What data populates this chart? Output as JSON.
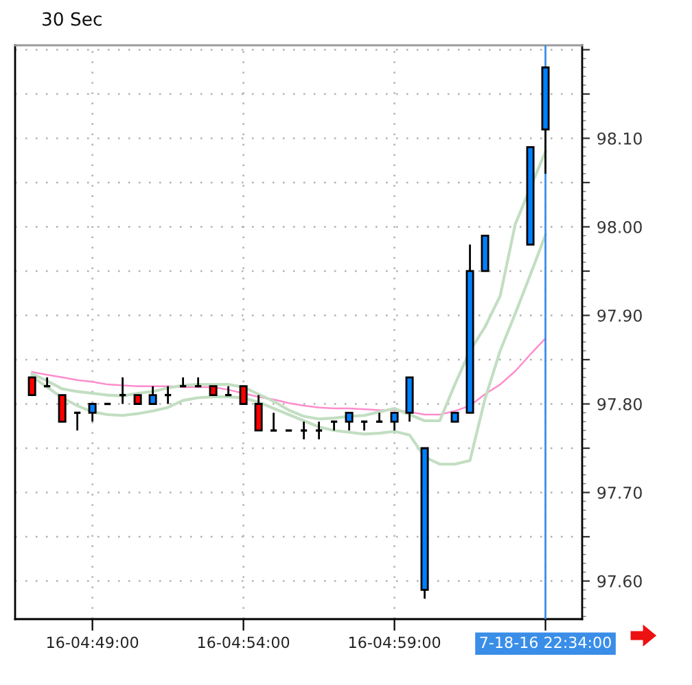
{
  "chart_data": {
    "type": "candlestick",
    "title": "30 Sec",
    "categories": [
      null,
      null,
      null,
      null,
      "16-04:49:00",
      null,
      null,
      null,
      null,
      null,
      null,
      null,
      null,
      null,
      "16-04:54:00",
      null,
      null,
      null,
      null,
      null,
      null,
      null,
      null,
      null,
      "16-04:59:00",
      null,
      null,
      null,
      null,
      null,
      null,
      null,
      null,
      null,
      "7-18-16 22:34:00"
    ],
    "ohlc": [
      [
        97.83,
        97.83,
        97.81,
        97.81
      ],
      [
        97.82,
        97.83,
        97.82,
        97.82
      ],
      [
        97.81,
        97.81,
        97.78,
        97.78
      ],
      [
        97.79,
        97.79,
        97.77,
        97.79
      ],
      [
        97.79,
        97.8,
        97.78,
        97.8
      ],
      [
        97.8,
        97.8,
        97.8,
        97.8
      ],
      [
        97.81,
        97.83,
        97.8,
        97.81
      ],
      [
        97.81,
        97.81,
        97.8,
        97.8
      ],
      [
        97.8,
        97.82,
        97.8,
        97.81
      ],
      [
        97.81,
        97.82,
        97.8,
        97.81
      ],
      [
        97.82,
        97.83,
        97.82,
        97.82
      ],
      [
        97.82,
        97.83,
        97.82,
        97.82
      ],
      [
        97.82,
        97.82,
        97.81,
        97.81
      ],
      [
        97.81,
        97.82,
        97.81,
        97.81
      ],
      [
        97.82,
        97.82,
        97.8,
        97.8
      ],
      [
        97.8,
        97.81,
        97.77,
        97.77
      ],
      [
        97.77,
        97.79,
        97.77,
        97.77
      ],
      [
        97.77,
        97.77,
        97.77,
        97.77
      ],
      [
        97.77,
        97.78,
        97.76,
        97.77
      ],
      [
        97.77,
        97.78,
        97.76,
        97.77
      ],
      [
        97.78,
        97.78,
        97.77,
        97.78
      ],
      [
        97.78,
        97.79,
        97.77,
        97.79
      ],
      [
        97.78,
        97.78,
        97.77,
        97.78
      ],
      [
        97.78,
        97.79,
        97.78,
        97.78
      ],
      [
        97.78,
        97.79,
        97.77,
        97.79
      ],
      [
        97.79,
        97.83,
        97.78,
        97.83
      ],
      [
        97.59,
        97.75,
        97.58,
        97.75
      ],
      null,
      [
        97.78,
        97.79,
        97.78,
        97.79
      ],
      [
        97.79,
        97.98,
        97.79,
        97.95
      ],
      [
        97.95,
        97.99,
        97.95,
        97.99
      ],
      null,
      null,
      [
        97.98,
        98.09,
        97.98,
        98.09
      ],
      [
        98.11,
        98.18,
        98.06,
        98.18
      ]
    ],
    "colors": [
      "#ff0000",
      "#000000",
      "#ff0000",
      "#000000",
      "#0080ff",
      "#000000",
      "#000000",
      "#ff0000",
      "#0080ff",
      "#000000",
      "#000000",
      "#000000",
      "#ff0000",
      "#000000",
      "#ff0000",
      "#ff0000",
      "#000000",
      "#000000",
      "#000000",
      "#000000",
      "#000000",
      "#0080ff",
      "#000000",
      "#000000",
      "#0080ff",
      "#0080ff",
      "#0080ff",
      null,
      "#0080ff",
      "#0080ff",
      "#0080ff",
      null,
      null,
      "#0080ff",
      "#0080ff"
    ],
    "series": [
      {
        "type": "line",
        "color": "#ff8ccc",
        "values": [
          97.836,
          97.833,
          97.83,
          97.827,
          97.825,
          97.822,
          97.821,
          97.82,
          97.82,
          97.82,
          97.819,
          97.819,
          97.819,
          97.816,
          97.812,
          97.808,
          97.805,
          97.801,
          97.798,
          97.796,
          97.795,
          97.795,
          97.794,
          97.793,
          97.793,
          97.791,
          97.788,
          97.788,
          97.792,
          97.798,
          97.811,
          97.822,
          97.837,
          97.856,
          97.874
        ]
      },
      {
        "type": "line",
        "color": "#c2dec2",
        "values": [
          97.834,
          97.826,
          97.817,
          97.814,
          97.812,
          97.81,
          97.809,
          97.812,
          97.814,
          97.818,
          97.821,
          97.822,
          97.822,
          97.822,
          97.819,
          97.811,
          97.803,
          97.793,
          97.786,
          97.783,
          97.784,
          97.786,
          97.787,
          97.791,
          97.795,
          97.788,
          97.781,
          97.781,
          97.822,
          97.86,
          97.887,
          97.922,
          98.003,
          null,
          98.085
        ]
      },
      {
        "type": "line",
        "color": "#c2dec2",
        "values": [
          97.831,
          97.819,
          97.807,
          97.798,
          97.791,
          97.788,
          97.787,
          97.789,
          97.792,
          97.796,
          97.804,
          97.807,
          97.808,
          97.808,
          97.807,
          97.802,
          97.795,
          97.788,
          97.781,
          97.774,
          97.77,
          97.768,
          97.766,
          97.767,
          97.769,
          97.765,
          97.74,
          97.732,
          97.732,
          97.736,
          97.806,
          97.86,
          97.902,
          97.946,
          97.991
        ]
      }
    ],
    "ylim": [
      97.557,
      98.205
    ],
    "yticks": [
      {
        "value": 97.6,
        "label": "97.60"
      },
      {
        "value": 97.65,
        "label": null
      },
      {
        "value": 97.7,
        "label": "97.70"
      },
      {
        "value": 97.75,
        "label": null
      },
      {
        "value": 97.8,
        "label": "97.80"
      },
      {
        "value": 97.85,
        "label": null
      },
      {
        "value": 97.9,
        "label": "97.90"
      },
      {
        "value": 97.95,
        "label": null
      },
      {
        "value": 98.0,
        "label": "98.00"
      },
      {
        "value": 98.05,
        "label": null
      },
      {
        "value": 98.1,
        "label": "98.10"
      },
      {
        "value": 98.15,
        "label": null
      },
      {
        "value": 98.2,
        "label": null
      }
    ],
    "grid": true,
    "ref_lines": [
      {
        "axis": "x",
        "value": "7-18-16 22:34:00",
        "color": "#3a8ee8"
      }
    ]
  }
}
